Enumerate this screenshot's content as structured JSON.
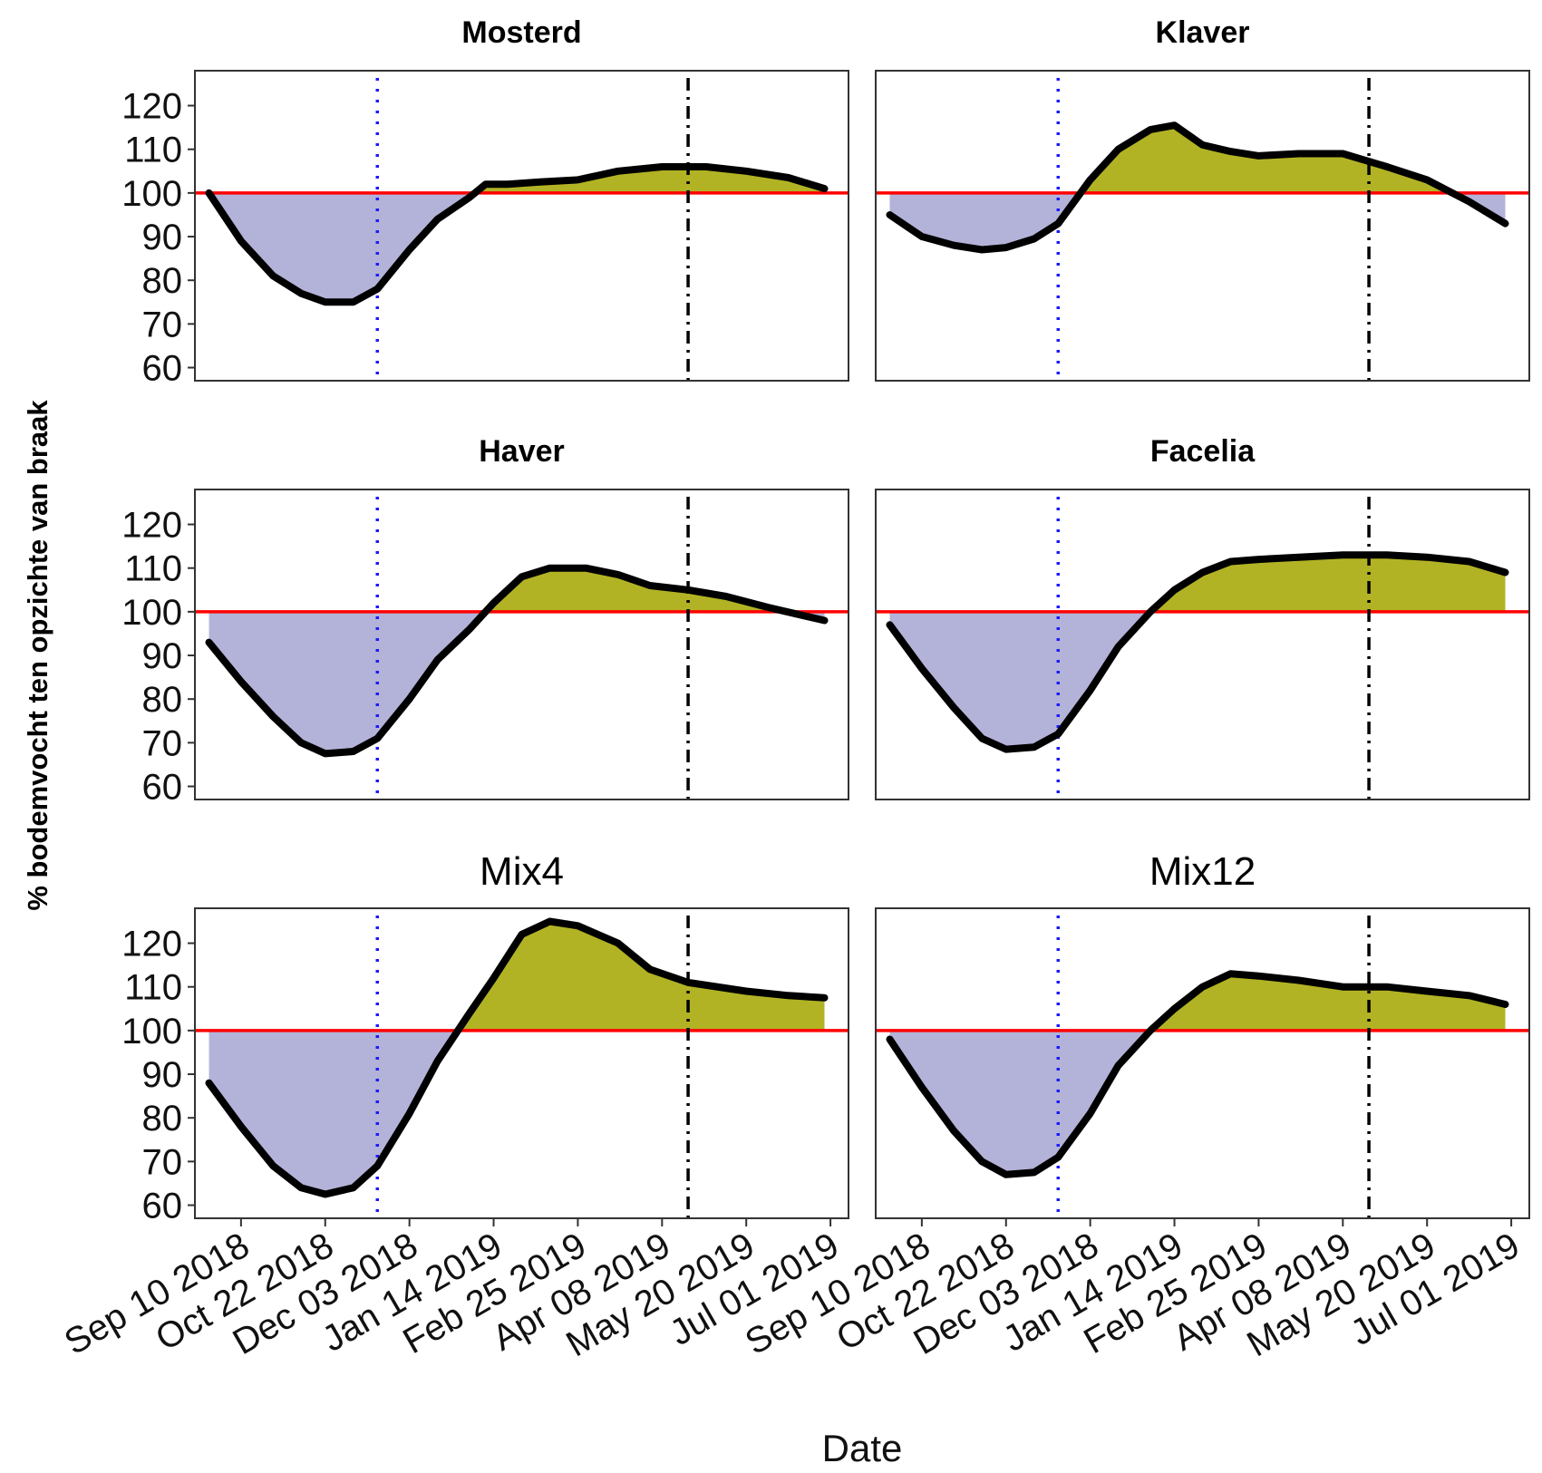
{
  "chart_data": {
    "type": "area",
    "ylabel": "% bodemvocht  ten opzichte van braak",
    "xlabel": "Date",
    "ylim": [
      57,
      128
    ],
    "yticks": [
      60,
      70,
      80,
      90,
      100,
      110,
      120
    ],
    "reference_line": 100,
    "x_range": [
      "2018-08-18",
      "2019-07-10"
    ],
    "x_ticks": [
      {
        "date": "2018-09-10",
        "label": "Sep 10 2018"
      },
      {
        "date": "2018-10-22",
        "label": "Oct 22 2018"
      },
      {
        "date": "2018-12-03",
        "label": "Dec 03 2018"
      },
      {
        "date": "2019-01-14",
        "label": "Jan 14 2019"
      },
      {
        "date": "2019-02-25",
        "label": "Feb 25 2019"
      },
      {
        "date": "2019-04-08",
        "label": "Apr 08 2019"
      },
      {
        "date": "2019-05-20",
        "label": "May 20 2019"
      },
      {
        "date": "2019-07-01",
        "label": "Jul 01 2019"
      }
    ],
    "vlines": [
      {
        "date": "2018-11-17",
        "style": "dotted",
        "color": "#1a1aff"
      },
      {
        "date": "2019-04-21",
        "style": "dashdot",
        "color": "#000000"
      }
    ],
    "colors": {
      "below": "#b3b3d9",
      "above": "#b2b324",
      "reference": "#ff0000",
      "curve": "#000000"
    },
    "panels": [
      {
        "title": "Mosterd",
        "title_bold": true,
        "series": [
          {
            "x": "2018-08-25",
            "y": 100
          },
          {
            "x": "2018-09-10",
            "y": 89
          },
          {
            "x": "2018-09-26",
            "y": 81
          },
          {
            "x": "2018-10-10",
            "y": 77
          },
          {
            "x": "2018-10-22",
            "y": 75
          },
          {
            "x": "2018-11-05",
            "y": 75
          },
          {
            "x": "2018-11-17",
            "y": 78
          },
          {
            "x": "2018-12-03",
            "y": 87
          },
          {
            "x": "2018-12-17",
            "y": 94
          },
          {
            "x": "2019-01-02",
            "y": 99
          },
          {
            "x": "2019-01-10",
            "y": 102
          },
          {
            "x": "2019-01-21",
            "y": 102
          },
          {
            "x": "2019-02-06",
            "y": 102.5
          },
          {
            "x": "2019-02-25",
            "y": 103
          },
          {
            "x": "2019-03-17",
            "y": 105
          },
          {
            "x": "2019-04-08",
            "y": 106
          },
          {
            "x": "2019-04-30",
            "y": 106
          },
          {
            "x": "2019-05-20",
            "y": 105
          },
          {
            "x": "2019-06-10",
            "y": 103.5
          },
          {
            "x": "2019-06-28",
            "y": 101
          }
        ]
      },
      {
        "title": "Klaver",
        "title_bold": true,
        "series": [
          {
            "x": "2018-08-25",
            "y": 95
          },
          {
            "x": "2018-09-10",
            "y": 90
          },
          {
            "x": "2018-09-26",
            "y": 88
          },
          {
            "x": "2018-10-10",
            "y": 87
          },
          {
            "x": "2018-10-22",
            "y": 87.5
          },
          {
            "x": "2018-11-05",
            "y": 89.5
          },
          {
            "x": "2018-11-17",
            "y": 93
          },
          {
            "x": "2018-12-03",
            "y": 103
          },
          {
            "x": "2018-12-17",
            "y": 110
          },
          {
            "x": "2019-01-02",
            "y": 114.5
          },
          {
            "x": "2019-01-14",
            "y": 115.5
          },
          {
            "x": "2019-01-28",
            "y": 111
          },
          {
            "x": "2019-02-11",
            "y": 109.5
          },
          {
            "x": "2019-02-25",
            "y": 108.5
          },
          {
            "x": "2019-03-17",
            "y": 109
          },
          {
            "x": "2019-04-08",
            "y": 109
          },
          {
            "x": "2019-04-30",
            "y": 106
          },
          {
            "x": "2019-05-20",
            "y": 103
          },
          {
            "x": "2019-06-10",
            "y": 98
          },
          {
            "x": "2019-06-28",
            "y": 93
          }
        ]
      },
      {
        "title": "Haver",
        "title_bold": true,
        "series": [
          {
            "x": "2018-08-25",
            "y": 93
          },
          {
            "x": "2018-09-10",
            "y": 84
          },
          {
            "x": "2018-09-26",
            "y": 76
          },
          {
            "x": "2018-10-10",
            "y": 70
          },
          {
            "x": "2018-10-22",
            "y": 67.5
          },
          {
            "x": "2018-11-05",
            "y": 68
          },
          {
            "x": "2018-11-17",
            "y": 71
          },
          {
            "x": "2018-12-03",
            "y": 80
          },
          {
            "x": "2018-12-17",
            "y": 89
          },
          {
            "x": "2019-01-02",
            "y": 96
          },
          {
            "x": "2019-01-14",
            "y": 102
          },
          {
            "x": "2019-01-28",
            "y": 108
          },
          {
            "x": "2019-02-11",
            "y": 110
          },
          {
            "x": "2019-03-01",
            "y": 110
          },
          {
            "x": "2019-03-17",
            "y": 108.5
          },
          {
            "x": "2019-04-02",
            "y": 106
          },
          {
            "x": "2019-04-21",
            "y": 105
          },
          {
            "x": "2019-05-10",
            "y": 103.5
          },
          {
            "x": "2019-05-31",
            "y": 101
          },
          {
            "x": "2019-06-28",
            "y": 98
          }
        ]
      },
      {
        "title": "Facelia",
        "title_bold": true,
        "series": [
          {
            "x": "2018-08-25",
            "y": 97
          },
          {
            "x": "2018-09-10",
            "y": 87
          },
          {
            "x": "2018-09-26",
            "y": 78
          },
          {
            "x": "2018-10-10",
            "y": 71
          },
          {
            "x": "2018-10-22",
            "y": 68.5
          },
          {
            "x": "2018-11-05",
            "y": 69
          },
          {
            "x": "2018-11-17",
            "y": 72
          },
          {
            "x": "2018-12-03",
            "y": 82
          },
          {
            "x": "2018-12-17",
            "y": 92
          },
          {
            "x": "2019-01-02",
            "y": 100
          },
          {
            "x": "2019-01-14",
            "y": 105
          },
          {
            "x": "2019-01-28",
            "y": 109
          },
          {
            "x": "2019-02-11",
            "y": 111.5
          },
          {
            "x": "2019-02-25",
            "y": 112
          },
          {
            "x": "2019-03-17",
            "y": 112.5
          },
          {
            "x": "2019-04-08",
            "y": 113
          },
          {
            "x": "2019-04-30",
            "y": 113
          },
          {
            "x": "2019-05-20",
            "y": 112.5
          },
          {
            "x": "2019-06-10",
            "y": 111.5
          },
          {
            "x": "2019-06-28",
            "y": 109
          }
        ]
      },
      {
        "title": "Mix4",
        "title_bold": false,
        "series": [
          {
            "x": "2018-08-25",
            "y": 88
          },
          {
            "x": "2018-09-10",
            "y": 78
          },
          {
            "x": "2018-09-26",
            "y": 69
          },
          {
            "x": "2018-10-10",
            "y": 64
          },
          {
            "x": "2018-10-22",
            "y": 62.5
          },
          {
            "x": "2018-11-05",
            "y": 64
          },
          {
            "x": "2018-11-17",
            "y": 69
          },
          {
            "x": "2018-12-03",
            "y": 81
          },
          {
            "x": "2018-12-17",
            "y": 93
          },
          {
            "x": "2019-01-02",
            "y": 104
          },
          {
            "x": "2019-01-14",
            "y": 112
          },
          {
            "x": "2019-01-28",
            "y": 122
          },
          {
            "x": "2019-02-11",
            "y": 125
          },
          {
            "x": "2019-02-25",
            "y": 124
          },
          {
            "x": "2019-03-17",
            "y": 120
          },
          {
            "x": "2019-04-02",
            "y": 114
          },
          {
            "x": "2019-04-21",
            "y": 111
          },
          {
            "x": "2019-05-20",
            "y": 109
          },
          {
            "x": "2019-06-10",
            "y": 108
          },
          {
            "x": "2019-06-28",
            "y": 107.5
          }
        ]
      },
      {
        "title": "Mix12",
        "title_bold": false,
        "series": [
          {
            "x": "2018-08-25",
            "y": 98
          },
          {
            "x": "2018-09-10",
            "y": 87
          },
          {
            "x": "2018-09-26",
            "y": 77
          },
          {
            "x": "2018-10-10",
            "y": 70
          },
          {
            "x": "2018-10-22",
            "y": 67
          },
          {
            "x": "2018-11-05",
            "y": 67.5
          },
          {
            "x": "2018-11-17",
            "y": 71
          },
          {
            "x": "2018-12-03",
            "y": 81
          },
          {
            "x": "2018-12-17",
            "y": 92
          },
          {
            "x": "2019-01-02",
            "y": 100
          },
          {
            "x": "2019-01-14",
            "y": 105
          },
          {
            "x": "2019-01-28",
            "y": 110
          },
          {
            "x": "2019-02-11",
            "y": 113
          },
          {
            "x": "2019-02-25",
            "y": 112.5
          },
          {
            "x": "2019-03-17",
            "y": 111.5
          },
          {
            "x": "2019-04-08",
            "y": 110
          },
          {
            "x": "2019-04-30",
            "y": 110
          },
          {
            "x": "2019-05-20",
            "y": 109
          },
          {
            "x": "2019-06-10",
            "y": 108
          },
          {
            "x": "2019-06-28",
            "y": 106
          }
        ]
      }
    ]
  }
}
